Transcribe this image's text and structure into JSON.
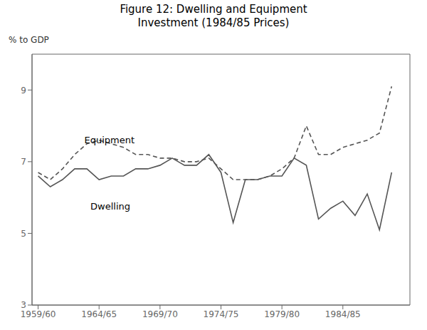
{
  "chart_data": {
    "type": "line",
    "title": "Figure 12: Dwelling and Equipment\nInvestment (1984/85 Prices)",
    "y_label": "% to GDP",
    "x": [
      1959,
      1960,
      1961,
      1962,
      1963,
      1964,
      1965,
      1966,
      1967,
      1968,
      1969,
      1970,
      1971,
      1972,
      1973,
      1974,
      1975,
      1976,
      1977,
      1978,
      1979,
      1980,
      1981,
      1982,
      1983,
      1984,
      1985,
      1986,
      1987,
      1988
    ],
    "series": [
      {
        "name": "Equipment",
        "color": "#555555",
        "line_style": "dashed",
        "values": [
          6.7,
          6.5,
          6.8,
          7.2,
          7.5,
          7.6,
          7.5,
          7.4,
          7.2,
          7.2,
          7.1,
          7.1,
          7.0,
          7.0,
          7.1,
          6.8,
          6.5,
          6.5,
          6.5,
          6.6,
          6.8,
          7.1,
          8.0,
          7.2,
          7.2,
          7.4,
          7.5,
          7.6,
          7.8,
          9.1
        ]
      },
      {
        "name": "Dwelling",
        "color": "#555555",
        "line_style": "solid",
        "values": [
          6.6,
          6.3,
          6.5,
          6.8,
          6.8,
          6.5,
          6.6,
          6.6,
          6.8,
          6.8,
          6.9,
          7.1,
          6.9,
          6.9,
          7.2,
          6.7,
          5.3,
          6.5,
          6.5,
          6.6,
          6.6,
          7.1,
          6.9,
          5.4,
          5.7,
          5.9,
          5.5,
          6.1,
          5.1,
          6.7
        ]
      }
    ],
    "xlim": [
      1958.5,
      1989.5
    ],
    "xticks": [
      {
        "value": 1959,
        "label": "1959/60"
      },
      {
        "value": 1964,
        "label": "1964/65"
      },
      {
        "value": 1969,
        "label": "1969/70"
      },
      {
        "value": 1974,
        "label": "1974/75"
      },
      {
        "value": 1979,
        "label": "1979/80"
      },
      {
        "value": 1984,
        "label": "1984/85"
      }
    ],
    "ylim": [
      3,
      10
    ],
    "yticks": [
      3,
      5,
      7,
      9
    ],
    "grid": false,
    "annotations": [
      {
        "text": "Equipment",
        "x": 1962.5,
        "y": 7.6
      },
      {
        "text": "Dwelling",
        "x": 1963.0,
        "y": 5.75
      }
    ]
  }
}
